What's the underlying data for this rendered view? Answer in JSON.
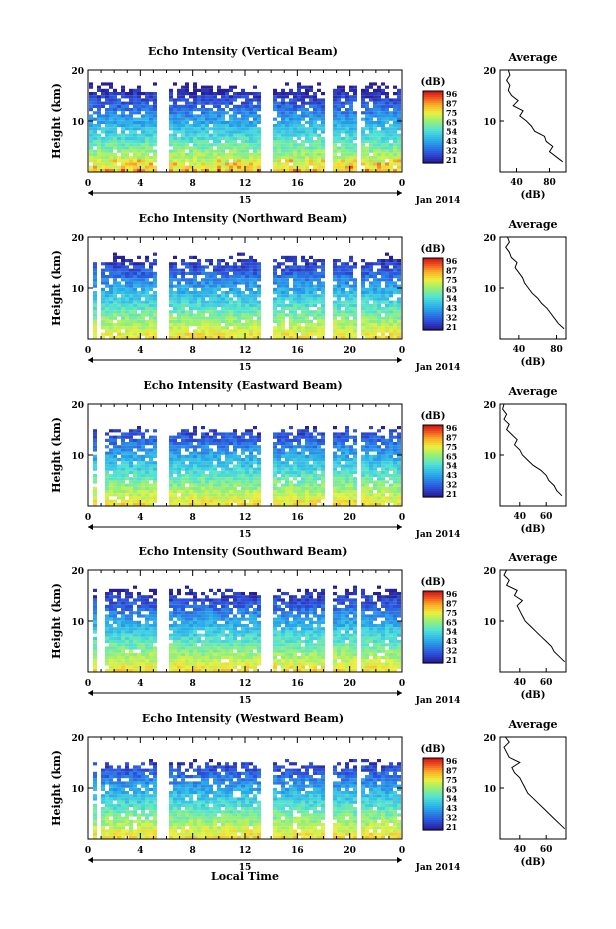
{
  "chart_data": [
    {
      "type": "heatmap",
      "title": "Echo Intensity (Vertical Beam)",
      "ylabel": "Height (km)",
      "y_ticks": [
        "20",
        "10"
      ],
      "x_ticks": [
        "0",
        "4",
        "8",
        "12",
        "16",
        "20",
        "0"
      ],
      "date_label": "15",
      "month_label": "Jan 2014",
      "colorbar_unit": "(dB)",
      "colorbar_ticks": [
        "96",
        "87",
        "75",
        "65",
        "54",
        "43",
        "32",
        "21"
      ],
      "profile_title": "Average",
      "profile_x_ticks": [
        "40",
        "80"
      ],
      "profile_y_ticks": [
        "20",
        "10"
      ],
      "profile_xlabel": "(dB)",
      "profile_xlim": [
        20,
        100
      ],
      "profile": {
        "height_km": [
          2,
          3,
          4,
          5,
          6,
          7,
          8,
          9,
          10,
          11,
          12,
          13,
          14,
          15,
          16,
          17,
          18,
          19,
          20
        ],
        "db": [
          96,
          88,
          80,
          84,
          76,
          74,
          62,
          58,
          52,
          44,
          48,
          36,
          42,
          34,
          30,
          32,
          28,
          32,
          30
        ]
      }
    },
    {
      "type": "heatmap",
      "title": "Echo Intensity (Northward Beam)",
      "ylabel": "Height (km)",
      "y_ticks": [
        "20",
        "10"
      ],
      "x_ticks": [
        "0",
        "4",
        "8",
        "12",
        "16",
        "20",
        "0"
      ],
      "date_label": "15",
      "month_label": "Jan 2014",
      "colorbar_unit": "(dB)",
      "colorbar_ticks": [
        "96",
        "87",
        "75",
        "65",
        "54",
        "43",
        "32",
        "21"
      ],
      "profile_title": "Average",
      "profile_x_ticks": [
        "40",
        "80"
      ],
      "profile_y_ticks": [
        "20",
        "10"
      ],
      "profile_xlabel": "(dB)",
      "profile_xlim": [
        20,
        90
      ],
      "profile": {
        "height_km": [
          2,
          3,
          4,
          5,
          6,
          7,
          8,
          9,
          10,
          11,
          12,
          13,
          14,
          15,
          16,
          17,
          18,
          19,
          20
        ],
        "db": [
          88,
          82,
          78,
          74,
          70,
          64,
          60,
          54,
          50,
          46,
          44,
          40,
          36,
          38,
          32,
          30,
          26,
          30,
          28
        ]
      }
    },
    {
      "type": "heatmap",
      "title": "Echo Intensity (Eastward Beam)",
      "ylabel": "Height (km)",
      "y_ticks": [
        "20",
        "10"
      ],
      "x_ticks": [
        "0",
        "4",
        "8",
        "12",
        "16",
        "20",
        "0"
      ],
      "date_label": "15",
      "month_label": "Jan 2014",
      "colorbar_unit": "(dB)",
      "colorbar_ticks": [
        "96",
        "87",
        "75",
        "65",
        "54",
        "43",
        "32",
        "21"
      ],
      "profile_title": "Average",
      "profile_x_ticks": [
        "40",
        "60"
      ],
      "profile_y_ticks": [
        "20",
        "10"
      ],
      "profile_xlabel": "(dB)",
      "profile_xlim": [
        25,
        75
      ],
      "profile": {
        "height_km": [
          2,
          3,
          4,
          5,
          6,
          7,
          8,
          9,
          10,
          11,
          12,
          13,
          14,
          15,
          16,
          17,
          18,
          19,
          20
        ],
        "db": [
          72,
          68,
          66,
          62,
          60,
          56,
          50,
          46,
          42,
          40,
          36,
          38,
          34,
          30,
          32,
          28,
          30,
          27,
          28
        ]
      }
    },
    {
      "type": "heatmap",
      "title": "Echo Intensity (Southward Beam)",
      "ylabel": "Height (km)",
      "y_ticks": [
        "20",
        "10"
      ],
      "x_ticks": [
        "0",
        "4",
        "8",
        "12",
        "16",
        "20",
        "0"
      ],
      "date_label": "15",
      "month_label": "Jan 2014",
      "colorbar_unit": "(dB)",
      "colorbar_ticks": [
        "96",
        "87",
        "75",
        "65",
        "54",
        "43",
        "32",
        "21"
      ],
      "profile_title": "Average",
      "profile_x_ticks": [
        "40",
        "60"
      ],
      "profile_y_ticks": [
        "20",
        "10"
      ],
      "profile_xlabel": "(dB)",
      "profile_xlim": [
        25,
        75
      ],
      "profile": {
        "height_km": [
          2,
          3,
          4,
          5,
          6,
          7,
          8,
          9,
          10,
          11,
          12,
          13,
          14,
          15,
          16,
          17,
          18,
          19,
          20
        ],
        "db": [
          74,
          70,
          66,
          64,
          60,
          56,
          52,
          48,
          44,
          42,
          40,
          38,
          42,
          36,
          38,
          30,
          32,
          28,
          30
        ]
      }
    },
    {
      "type": "heatmap",
      "title": "Echo Intensity (Westward Beam)",
      "ylabel": "Height (km)",
      "y_ticks": [
        "20",
        "10"
      ],
      "x_ticks": [
        "0",
        "4",
        "8",
        "12",
        "16",
        "20",
        "0"
      ],
      "date_label": "15",
      "month_label": "Jan 2014",
      "xlabel": "Local Time",
      "colorbar_unit": "(dB)",
      "colorbar_ticks": [
        "96",
        "87",
        "75",
        "65",
        "54",
        "43",
        "32",
        "21"
      ],
      "profile_title": "Average",
      "profile_x_ticks": [
        "40",
        "60"
      ],
      "profile_y_ticks": [
        "20",
        "10"
      ],
      "profile_xlabel": "(dB)",
      "profile_xlim": [
        25,
        75
      ],
      "profile": {
        "height_km": [
          2,
          3,
          4,
          5,
          6,
          7,
          8,
          9,
          10,
          11,
          12,
          13,
          14,
          15,
          16,
          17,
          18,
          19,
          20
        ],
        "db": [
          74,
          70,
          66,
          62,
          58,
          54,
          50,
          46,
          44,
          42,
          40,
          36,
          34,
          40,
          32,
          30,
          28,
          32,
          29
        ]
      }
    }
  ]
}
